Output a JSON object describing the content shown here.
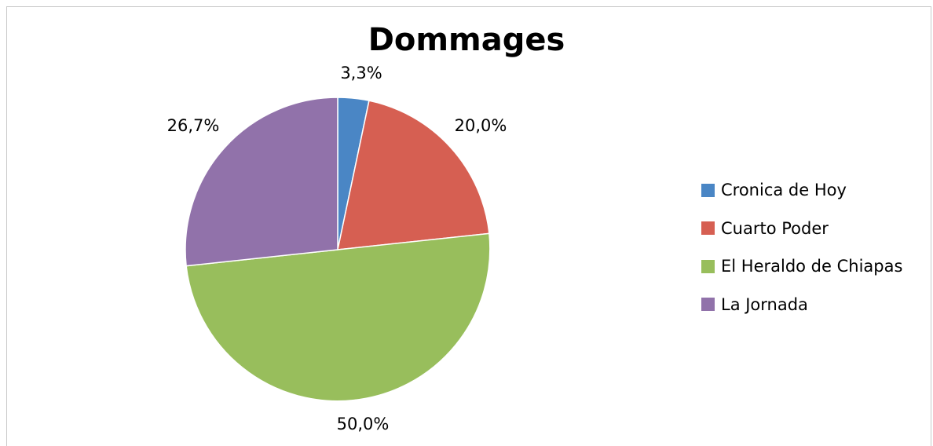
{
  "chart_data": {
    "type": "pie",
    "title": "Dommages",
    "categories": [
      "Cronica de Hoy",
      "Cuarto Poder",
      "El Heraldo de Chiapas",
      "La Jornada"
    ],
    "values": [
      3.3,
      20.0,
      50.0,
      26.7
    ],
    "data_labels": [
      "3,3%",
      "20,0%",
      "50,0%",
      "26,7%"
    ],
    "colors": [
      "#4a86c5",
      "#d65f52",
      "#98be5c",
      "#9172aa"
    ],
    "start_angle": "12 o'clock",
    "direction": "clockwise",
    "legend_position": "right"
  }
}
